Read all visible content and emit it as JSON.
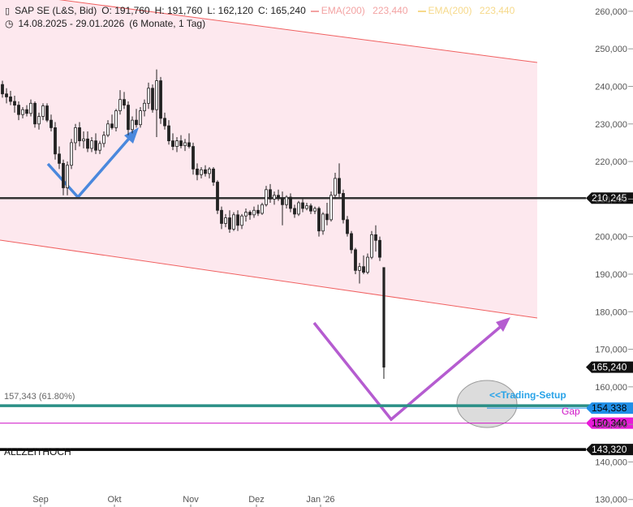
{
  "header": {
    "instrument": "SAP SE (L&S, Bid)",
    "open": "O: 191,760",
    "high": "H: 191,760",
    "low": "L: 162,120",
    "close": "C: 165,240",
    "ema_a_label": "EMA(200)",
    "ema_a_value": "223,440",
    "ema_b_label": "EMA(200)",
    "ema_b_value": "223,440",
    "range": "14.08.2025 - 29.01.2026",
    "period": "(6 Monate, 1 Tag)"
  },
  "chart_data": {
    "type": "candlestick",
    "y_axis": {
      "min": 128000,
      "max": 263000,
      "ticks": [
        260000,
        250000,
        240000,
        230000,
        220000,
        210000,
        200000,
        190000,
        180000,
        170000,
        160000,
        150000,
        140000,
        130000
      ],
      "tick_labels": [
        "260,000",
        "250,000",
        "240,000",
        "230,000",
        "220,000",
        "210,000",
        "200,000",
        "190,000",
        "180,000",
        "170,000",
        "160,000",
        "150,000",
        "140,000",
        "130,000"
      ]
    },
    "x_axis": {
      "labels": [
        "Sep",
        "Okt",
        "Nov",
        "Dez",
        "Jan '26"
      ]
    },
    "candles": [
      {
        "o": 240500,
        "h": 241500,
        "l": 237000,
        "c": 238000
      },
      {
        "o": 238000,
        "h": 239500,
        "l": 235500,
        "c": 237200
      },
      {
        "o": 237200,
        "h": 238800,
        "l": 235000,
        "c": 236000
      },
      {
        "o": 236000,
        "h": 237500,
        "l": 233000,
        "c": 235000
      },
      {
        "o": 235000,
        "h": 236000,
        "l": 231000,
        "c": 232500
      },
      {
        "o": 232500,
        "h": 234500,
        "l": 231500,
        "c": 233800
      },
      {
        "o": 233800,
        "h": 235000,
        "l": 232000,
        "c": 232800
      },
      {
        "o": 232800,
        "h": 236500,
        "l": 232000,
        "c": 235500
      },
      {
        "o": 235500,
        "h": 236000,
        "l": 229000,
        "c": 230000
      },
      {
        "o": 230000,
        "h": 233000,
        "l": 228500,
        "c": 232000
      },
      {
        "o": 232000,
        "h": 235500,
        "l": 231000,
        "c": 234800
      },
      {
        "o": 234800,
        "h": 235500,
        "l": 230500,
        "c": 231000
      },
      {
        "o": 231000,
        "h": 232500,
        "l": 228000,
        "c": 229000
      },
      {
        "o": 229000,
        "h": 230500,
        "l": 220500,
        "c": 222000
      },
      {
        "o": 222000,
        "h": 224000,
        "l": 218000,
        "c": 219500
      },
      {
        "o": 219500,
        "h": 220500,
        "l": 211000,
        "c": 213000
      },
      {
        "o": 213000,
        "h": 220000,
        "l": 211000,
        "c": 219000
      },
      {
        "o": 219000,
        "h": 226000,
        "l": 218000,
        "c": 225000
      },
      {
        "o": 225000,
        "h": 230000,
        "l": 223000,
        "c": 229000
      },
      {
        "o": 229000,
        "h": 230500,
        "l": 224000,
        "c": 225500
      },
      {
        "o": 225500,
        "h": 228000,
        "l": 223500,
        "c": 226000
      },
      {
        "o": 226000,
        "h": 228000,
        "l": 222500,
        "c": 223500
      },
      {
        "o": 223500,
        "h": 226500,
        "l": 222500,
        "c": 225500
      },
      {
        "o": 225500,
        "h": 227500,
        "l": 222000,
        "c": 223000
      },
      {
        "o": 223000,
        "h": 225500,
        "l": 222000,
        "c": 224800
      },
      {
        "o": 224800,
        "h": 228000,
        "l": 223800,
        "c": 227000
      },
      {
        "o": 227000,
        "h": 231000,
        "l": 226500,
        "c": 230000
      },
      {
        "o": 230000,
        "h": 232500,
        "l": 228500,
        "c": 229000
      },
      {
        "o": 229000,
        "h": 234000,
        "l": 228000,
        "c": 233500
      },
      {
        "o": 233500,
        "h": 239000,
        "l": 232500,
        "c": 236500
      },
      {
        "o": 236500,
        "h": 238500,
        "l": 234000,
        "c": 235000
      },
      {
        "o": 235000,
        "h": 236000,
        "l": 227000,
        "c": 228500
      },
      {
        "o": 228500,
        "h": 232000,
        "l": 227500,
        "c": 231000
      },
      {
        "o": 231000,
        "h": 234000,
        "l": 229000,
        "c": 229800
      },
      {
        "o": 229800,
        "h": 234500,
        "l": 229000,
        "c": 233500
      },
      {
        "o": 233500,
        "h": 236500,
        "l": 232000,
        "c": 235500
      },
      {
        "o": 235500,
        "h": 241000,
        "l": 234000,
        "c": 239500
      },
      {
        "o": 239500,
        "h": 240500,
        "l": 233000,
        "c": 233800
      },
      {
        "o": 233800,
        "h": 244500,
        "l": 226500,
        "c": 241500
      },
      {
        "o": 241500,
        "h": 242500,
        "l": 230000,
        "c": 231500
      },
      {
        "o": 231500,
        "h": 233000,
        "l": 228500,
        "c": 229500
      },
      {
        "o": 229500,
        "h": 231000,
        "l": 224500,
        "c": 225500
      },
      {
        "o": 225500,
        "h": 227500,
        "l": 223000,
        "c": 224000
      },
      {
        "o": 224000,
        "h": 226500,
        "l": 222500,
        "c": 225500
      },
      {
        "o": 225500,
        "h": 227000,
        "l": 223500,
        "c": 224200
      },
      {
        "o": 224200,
        "h": 226000,
        "l": 222800,
        "c": 225000
      },
      {
        "o": 225000,
        "h": 227500,
        "l": 223500,
        "c": 224000
      },
      {
        "o": 224000,
        "h": 225000,
        "l": 216500,
        "c": 218000
      },
      {
        "o": 218000,
        "h": 219500,
        "l": 215000,
        "c": 216500
      },
      {
        "o": 216500,
        "h": 218500,
        "l": 215500,
        "c": 217800
      },
      {
        "o": 217800,
        "h": 219000,
        "l": 216000,
        "c": 216800
      },
      {
        "o": 216800,
        "h": 218500,
        "l": 215500,
        "c": 218000
      },
      {
        "o": 218000,
        "h": 218500,
        "l": 213500,
        "c": 214500
      },
      {
        "o": 214500,
        "h": 215000,
        "l": 206000,
        "c": 207000
      },
      {
        "o": 207000,
        "h": 208000,
        "l": 202000,
        "c": 203500
      },
      {
        "o": 203500,
        "h": 206000,
        "l": 202500,
        "c": 205000
      },
      {
        "o": 205000,
        "h": 207000,
        "l": 201000,
        "c": 202000
      },
      {
        "o": 202000,
        "h": 206500,
        "l": 201500,
        "c": 205800
      },
      {
        "o": 205800,
        "h": 207000,
        "l": 201500,
        "c": 203000
      },
      {
        "o": 203000,
        "h": 206000,
        "l": 202000,
        "c": 205500
      },
      {
        "o": 205500,
        "h": 207500,
        "l": 204000,
        "c": 206500
      },
      {
        "o": 206500,
        "h": 207000,
        "l": 204500,
        "c": 205800
      },
      {
        "o": 205800,
        "h": 208000,
        "l": 205000,
        "c": 207000
      },
      {
        "o": 207000,
        "h": 208500,
        "l": 205500,
        "c": 206200
      },
      {
        "o": 206200,
        "h": 209000,
        "l": 205800,
        "c": 208500
      },
      {
        "o": 208500,
        "h": 213500,
        "l": 208000,
        "c": 212500
      },
      {
        "o": 212500,
        "h": 214000,
        "l": 209000,
        "c": 210000
      },
      {
        "o": 210000,
        "h": 212000,
        "l": 208500,
        "c": 211000
      },
      {
        "o": 211000,
        "h": 212500,
        "l": 209500,
        "c": 210200
      },
      {
        "o": 210200,
        "h": 212000,
        "l": 203000,
        "c": 208500
      },
      {
        "o": 208500,
        "h": 211000,
        "l": 207500,
        "c": 210500
      },
      {
        "o": 210500,
        "h": 211500,
        "l": 206500,
        "c": 207500
      },
      {
        "o": 207500,
        "h": 208500,
        "l": 205000,
        "c": 206000
      },
      {
        "o": 206000,
        "h": 209500,
        "l": 205500,
        "c": 209000
      },
      {
        "o": 209000,
        "h": 210000,
        "l": 206500,
        "c": 207500
      },
      {
        "o": 207500,
        "h": 209000,
        "l": 207000,
        "c": 208200
      },
      {
        "o": 208200,
        "h": 208800,
        "l": 206000,
        "c": 206800
      },
      {
        "o": 206800,
        "h": 208000,
        "l": 206000,
        "c": 207500
      },
      {
        "o": 207500,
        "h": 208000,
        "l": 200000,
        "c": 201500
      },
      {
        "o": 201500,
        "h": 206500,
        "l": 200500,
        "c": 206000
      },
      {
        "o": 206000,
        "h": 209000,
        "l": 203000,
        "c": 204500
      },
      {
        "o": 204500,
        "h": 212000,
        "l": 204000,
        "c": 211000
      },
      {
        "o": 211000,
        "h": 217000,
        "l": 210000,
        "c": 215500
      },
      {
        "o": 215500,
        "h": 219500,
        "l": 210500,
        "c": 211500
      },
      {
        "o": 211500,
        "h": 212500,
        "l": 203500,
        "c": 204500
      },
      {
        "o": 204500,
        "h": 205500,
        "l": 200000,
        "c": 200800
      },
      {
        "o": 200800,
        "h": 201500,
        "l": 195500,
        "c": 196500
      },
      {
        "o": 196500,
        "h": 197000,
        "l": 190000,
        "c": 191000
      },
      {
        "o": 191000,
        "h": 193000,
        "l": 187500,
        "c": 192000
      },
      {
        "o": 192000,
        "h": 195000,
        "l": 190000,
        "c": 190500
      },
      {
        "o": 190500,
        "h": 195500,
        "l": 190000,
        "c": 194500
      },
      {
        "o": 194500,
        "h": 201500,
        "l": 194000,
        "c": 200500
      },
      {
        "o": 200500,
        "h": 203000,
        "l": 196000,
        "c": 199000
      },
      {
        "o": 199000,
        "h": 200000,
        "l": 193500,
        "c": 194500
      },
      {
        "o": 191760,
        "h": 191760,
        "l": 162120,
        "c": 165240
      }
    ],
    "levels": [
      {
        "name": "horizontal-line",
        "value": 210245,
        "label": "210,245",
        "color": "#222222"
      },
      {
        "name": "last-price",
        "value": 165240,
        "label": "165,240",
        "color": "#000000"
      },
      {
        "name": "fib-618",
        "value": 157343,
        "label": "157,343 (61.80%)",
        "color": "#2a8f86"
      },
      {
        "name": "trading-setup",
        "value": 154338,
        "label": "154,338",
        "color": "#1f8fe8"
      },
      {
        "name": "gap",
        "value": 150340,
        "label": "150,340",
        "color": "#d018c8"
      },
      {
        "name": "allzeithoch",
        "value": 143320,
        "label": "143,320",
        "color": "#000000"
      }
    ],
    "annotations": {
      "trading_setup_text": "<<Trading-Setup",
      "gap_text": "Gap",
      "allzeithoch_text": "ALLZEITHOCH"
    },
    "colors": {
      "channel_fill": "#fde8ee",
      "channel_line": "#f06060",
      "blue_arrow": "#4a88dd",
      "purple_arrow": "#b55cd0",
      "candle": "#222222",
      "axis_text": "#555555"
    }
  }
}
